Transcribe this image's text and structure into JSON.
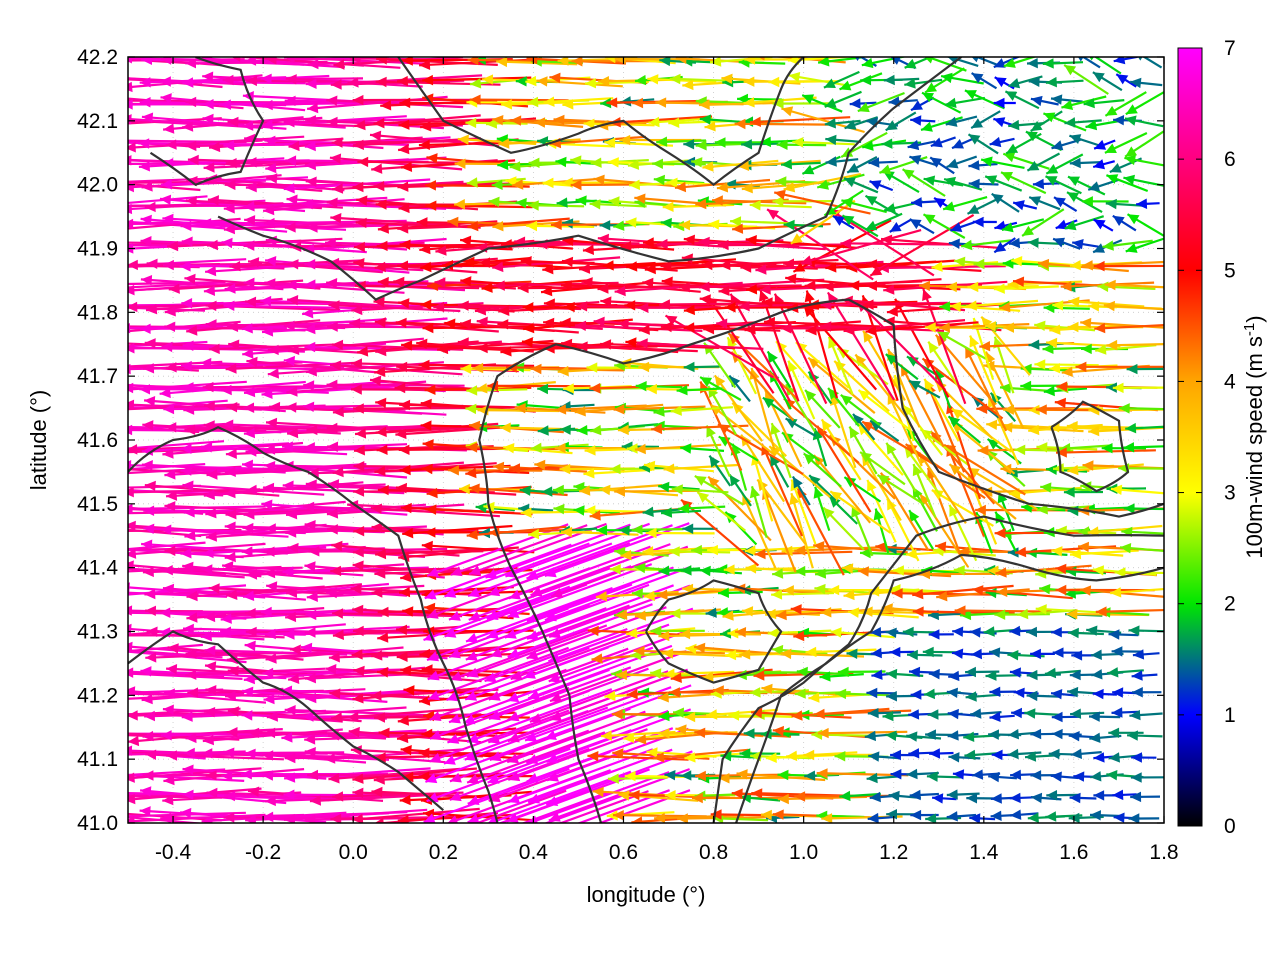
{
  "chart_data": {
    "type": "quiver",
    "xlabel": "longitude (°)",
    "ylabel": "latitude (°)",
    "colorbar_label": "100m-wind speed (m s-1)",
    "colorbar_label_main": "100m-wind speed (m s",
    "colorbar_label_sup": "-1",
    "colorbar_label_end": ")",
    "xlim": [
      -0.5,
      1.8
    ],
    "ylim": [
      41.0,
      42.2
    ],
    "clim": [
      0,
      7
    ],
    "x_ticks": [
      -0.4,
      -0.2,
      0.0,
      0.2,
      0.4,
      0.6,
      0.8,
      1.0,
      1.2,
      1.4,
      1.6,
      1.8
    ],
    "x_tick_labels": [
      "-0.4",
      "-0.2",
      "0.0",
      "0.2",
      "0.4",
      "0.6",
      "0.8",
      "1.0",
      "1.2",
      "1.4",
      "1.6",
      "1.8"
    ],
    "y_ticks": [
      41.0,
      41.1,
      41.2,
      41.3,
      41.4,
      41.5,
      41.6,
      41.7,
      41.8,
      41.9,
      42.0,
      42.1,
      42.2
    ],
    "y_tick_labels": [
      "41.0",
      "41.1",
      "41.2",
      "41.3",
      "41.4",
      "41.5",
      "41.6",
      "41.7",
      "41.8",
      "41.9",
      "42.0",
      "42.1",
      "42.2"
    ],
    "colorbar_ticks": [
      0,
      1,
      2,
      3,
      4,
      5,
      6,
      7
    ],
    "colorbar_tick_labels": [
      "0",
      "1",
      "2",
      "3",
      "4",
      "5",
      "6",
      "7"
    ],
    "colorbar_colors": [
      "#000000",
      "#0000ff",
      "#00e600",
      "#ffff00",
      "#ffa500",
      "#ff0000",
      "#ff00ff"
    ],
    "grid": true,
    "wind_field": {
      "description_regions": [
        {
          "region": "west (lon -0.5 to 0.3)",
          "direction": "from east (westward)",
          "speed": 6.5
        },
        {
          "region": "central band (lat 41.7-41.9)",
          "direction": "westward",
          "speed": 5.5
        },
        {
          "region": "southeast (lon 1.1-1.8, lat 41.0-41.3)",
          "direction": "westward",
          "speed": 1.5
        },
        {
          "region": "northeast",
          "direction": "variable",
          "speed": 1.0
        }
      ]
    }
  }
}
